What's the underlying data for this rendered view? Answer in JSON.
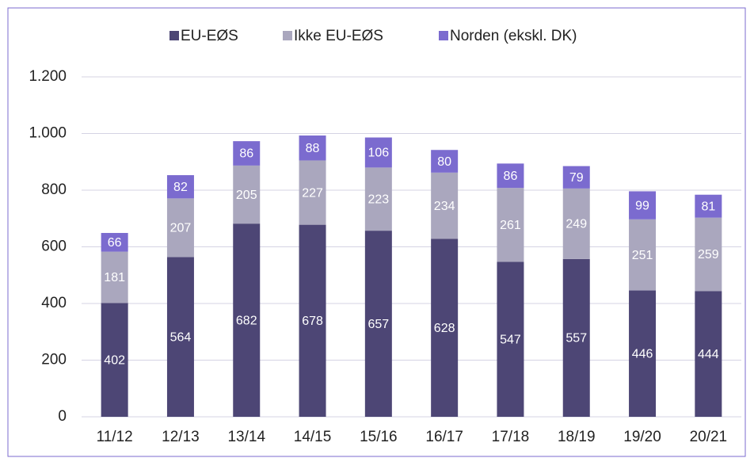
{
  "chart_data": {
    "type": "stacked_bar",
    "categories": [
      "11/12",
      "12/13",
      "13/14",
      "14/15",
      "15/16",
      "16/17",
      "17/18",
      "18/19",
      "19/20",
      "20/21"
    ],
    "series": [
      {
        "name": "EU-EØS",
        "color": "#4d4675",
        "values": [
          402,
          564,
          682,
          678,
          657,
          628,
          547,
          557,
          446,
          444
        ]
      },
      {
        "name": "Ikke EU-EØS",
        "color": "#aaa7be",
        "values": [
          181,
          207,
          205,
          227,
          223,
          234,
          261,
          249,
          251,
          259
        ]
      },
      {
        "name": "Norden (ekskl. DK)",
        "color": "#7b6bcf",
        "values": [
          66,
          82,
          86,
          88,
          106,
          80,
          86,
          79,
          99,
          81
        ]
      }
    ],
    "ylim": [
      0,
      1200
    ],
    "yticks": [
      0,
      200,
      400,
      600,
      800,
      {
        "value": 1000,
        "label": "1.000"
      },
      {
        "value": 1200,
        "label": "1.200"
      }
    ],
    "grid": true,
    "legend": "top"
  }
}
